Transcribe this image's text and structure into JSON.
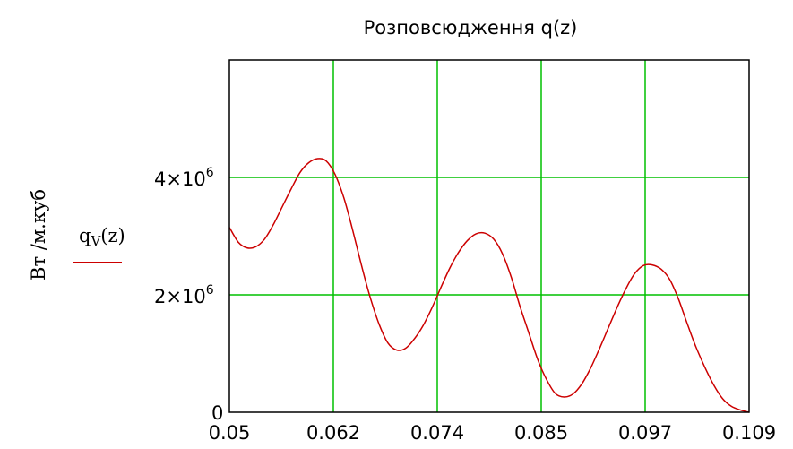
{
  "chart_data": {
    "type": "line",
    "title": "Розповсюдження q(z)",
    "ylabel": "Вт /м.куб",
    "xlim": [
      0.05,
      0.109
    ],
    "ylim": [
      0,
      6000000
    ],
    "x_ticks": [
      "0.05",
      "0.062",
      "0.074",
      "0.085",
      "0.097",
      "0.109"
    ],
    "y_ticks": [
      {
        "value": 0,
        "mantissa": "0",
        "exponent": ""
      },
      {
        "value": 2000000,
        "mantissa": "2×10",
        "exponent": "6"
      },
      {
        "value": 4000000,
        "mantissa": "4×10",
        "exponent": "6"
      }
    ],
    "grid": true,
    "grid_color": "#00c000",
    "line_color": "#cc0000",
    "legend": {
      "label": "q",
      "subscript": "V",
      "suffix": "(z)",
      "placement": "left"
    },
    "series": [
      {
        "name": "qV(z)",
        "x": [
          0.05,
          0.051,
          0.052,
          0.053,
          0.054,
          0.055,
          0.056,
          0.057,
          0.058,
          0.059,
          0.06,
          0.061,
          0.062,
          0.063,
          0.064,
          0.065,
          0.066,
          0.067,
          0.068,
          0.069,
          0.07,
          0.071,
          0.072,
          0.073,
          0.074,
          0.075,
          0.076,
          0.077,
          0.078,
          0.079,
          0.08,
          0.081,
          0.082,
          0.083,
          0.084,
          0.085,
          0.086,
          0.087,
          0.088,
          0.089,
          0.09,
          0.091,
          0.092,
          0.093,
          0.094,
          0.095,
          0.096,
          0.097,
          0.098,
          0.099,
          0.1,
          0.101,
          0.102,
          0.103,
          0.104,
          0.105,
          0.106,
          0.107,
          0.108,
          0.109
        ],
        "y": [
          3150000,
          2900000,
          2800000,
          2820000,
          2950000,
          3200000,
          3500000,
          3800000,
          4080000,
          4250000,
          4320000,
          4280000,
          4050000,
          3650000,
          3100000,
          2500000,
          1950000,
          1500000,
          1180000,
          1060000,
          1090000,
          1250000,
          1480000,
          1780000,
          2120000,
          2450000,
          2720000,
          2920000,
          3040000,
          3050000,
          2950000,
          2700000,
          2300000,
          1800000,
          1350000,
          900000,
          560000,
          320000,
          260000,
          310000,
          480000,
          750000,
          1080000,
          1430000,
          1780000,
          2100000,
          2360000,
          2500000,
          2510000,
          2440000,
          2260000,
          1920000,
          1500000,
          1100000,
          760000,
          460000,
          230000,
          100000,
          40000,
          0
        ]
      }
    ]
  }
}
